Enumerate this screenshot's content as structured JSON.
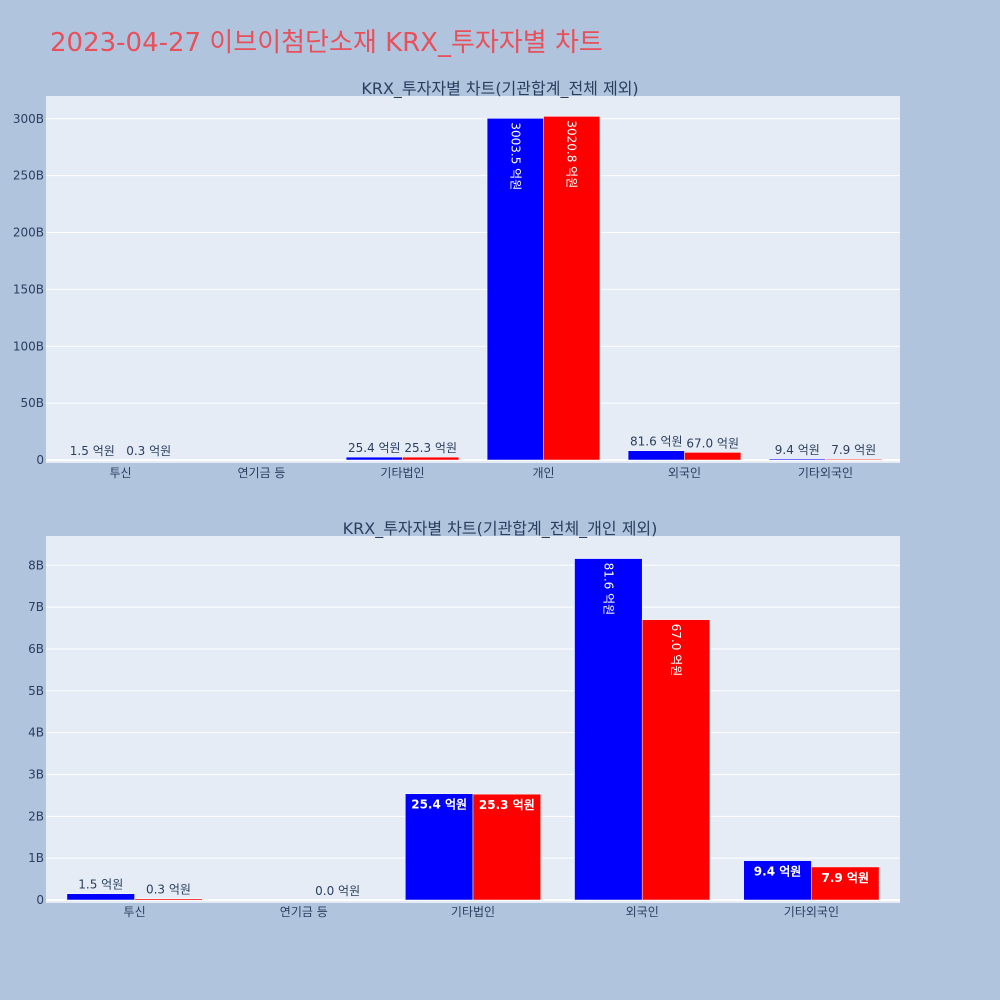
{
  "page_title": "2023-04-27 이브이첨단소재 KRX_투자자별 차트",
  "colors": {
    "background": "#b0c4de",
    "plot_bg": "#e5ecf6",
    "title": "#e8505b",
    "series_a": "#0000ff",
    "series_b": "#ff0000",
    "text": "#2a3f5f"
  },
  "chart_data": [
    {
      "type": "bar",
      "title": "KRX_투자자별 차트(기관합계_전체 제외)",
      "categories": [
        "투신",
        "연기금 등",
        "기타법인",
        "개인",
        "외국인",
        "기타외국인"
      ],
      "ylim": [
        0,
        320
      ],
      "yticks": [
        0,
        50,
        100,
        150,
        200,
        250,
        300
      ],
      "ytick_labels": [
        "0",
        "50B",
        "100B",
        "150B",
        "200B",
        "250B",
        "300B"
      ],
      "series": [
        {
          "color": "#0000ff",
          "values": [
            0.15,
            null,
            2.54,
            300.35,
            8.16,
            0.94
          ],
          "labels": [
            "1.5 억원",
            "",
            "25.4 억원",
            "3003.5 억원",
            "81.6 억원",
            "9.4 억원"
          ]
        },
        {
          "color": "#ff0000",
          "values": [
            0.03,
            null,
            2.53,
            302.08,
            6.7,
            0.79
          ],
          "labels": [
            "0.3 억원",
            "",
            "25.3 억원",
            "3020.8 억원",
            "67.0 억원",
            "7.9 억원"
          ]
        }
      ]
    },
    {
      "type": "bar",
      "title": "KRX_투자자별 차트(기관합계_전체_개인 제외)",
      "categories": [
        "투신",
        "연기금 등",
        "기타법인",
        "외국인",
        "기타외국인"
      ],
      "ylim": [
        0,
        8.7
      ],
      "yticks": [
        0,
        1,
        2,
        3,
        4,
        5,
        6,
        7,
        8
      ],
      "ytick_labels": [
        "0",
        "1B",
        "2B",
        "3B",
        "4B",
        "5B",
        "6B",
        "7B",
        "8B"
      ],
      "series": [
        {
          "color": "#0000ff",
          "values": [
            0.15,
            null,
            2.54,
            8.16,
            0.94
          ],
          "labels": [
            "1.5 억원",
            "",
            "25.4 억원",
            "81.6 억원",
            "9.4 억원"
          ]
        },
        {
          "color": "#ff0000",
          "values": [
            0.03,
            0.0,
            2.53,
            6.7,
            0.79
          ],
          "labels": [
            "0.3 억원",
            "0.0 억원",
            "25.3 억원",
            "67.0 억원",
            "7.9 억원"
          ]
        }
      ]
    }
  ]
}
